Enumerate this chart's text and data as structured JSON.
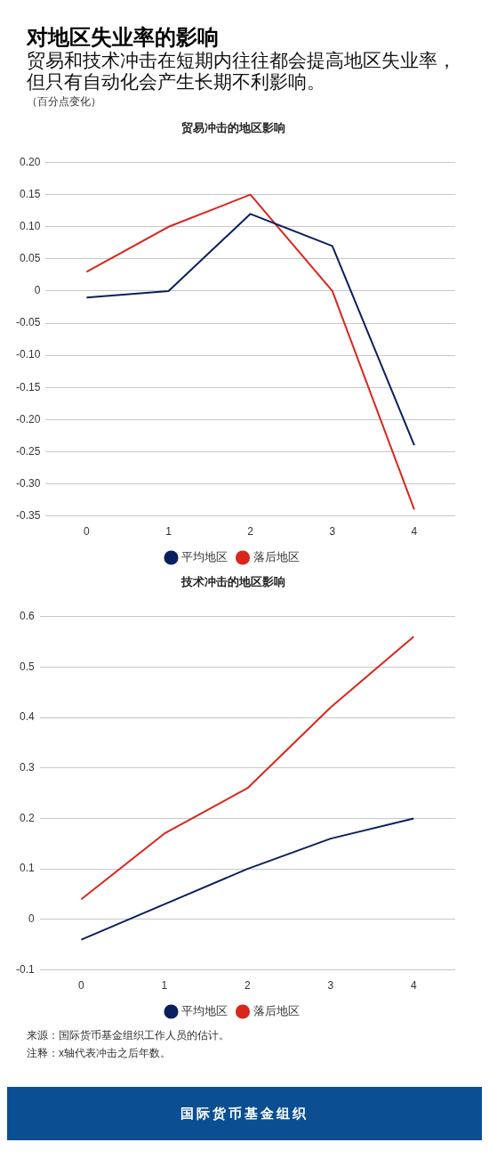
{
  "chart_data": [
    {
      "type": "other",
      "title": "对地区失业率的影响",
      "subtitle": "贸易和技术冲击在短期内往往都会提高地区失业率，但只有自动化会产生长期不利影响。",
      "annotations": [
        "（百分点变化）"
      ]
    },
    {
      "type": "line",
      "title": "贸易冲击的地区影响",
      "categories": [
        "0",
        "1",
        "2",
        "3",
        "4"
      ],
      "series": [
        {
          "name": "平均地区",
          "color": "#0b1f5e",
          "values": [
            -0.01,
            0.0,
            0.12,
            0.07,
            -0.24
          ]
        },
        {
          "name": "落后地区",
          "color": "#d9261c",
          "values": [
            0.03,
            0.1,
            0.15,
            0.0,
            -0.34
          ]
        }
      ],
      "ylim": [
        -0.35,
        0.2
      ],
      "yticks": [
        {
          "value": 0.2,
          "label": "0.20"
        },
        {
          "value": 0.15,
          "label": "0.15"
        },
        {
          "value": 0.1,
          "label": "0.10"
        },
        {
          "value": 0.05,
          "label": "0.05"
        },
        0,
        {
          "value": -0.05,
          "label": "-0.05"
        },
        {
          "value": -0.1,
          "label": "-0.10"
        },
        {
          "value": -0.15,
          "label": "-0.15"
        },
        {
          "value": -0.2,
          "label": "-0.20"
        },
        {
          "value": -0.25,
          "label": "-0.25"
        },
        {
          "value": -0.3,
          "label": "-0.30"
        },
        {
          "value": -0.35,
          "label": "-0.35"
        }
      ],
      "grid": "y",
      "legend": "bottom",
      "marker": "none",
      "line_style": "solid"
    },
    {
      "type": "line",
      "title": "技术冲击的地区影响",
      "categories": [
        "0",
        "1",
        "2",
        "3",
        "4"
      ],
      "series": [
        {
          "name": "平均地区",
          "color": "#0b1f5e",
          "values": [
            -0.04,
            0.03,
            0.1,
            0.16,
            0.2
          ]
        },
        {
          "name": "落后地区",
          "color": "#d9261c",
          "values": [
            0.04,
            0.17,
            0.26,
            0.42,
            0.56
          ]
        }
      ],
      "ylim": [
        -0.1,
        0.6
      ],
      "yticks": [
        -0.1,
        0,
        0.1,
        0.2,
        0.3,
        0.4,
        0.5,
        0.6
      ],
      "grid": "y",
      "legend": "bottom",
      "marker": "none",
      "line_style": "solid",
      "annotations": [
        "来源：国际货币基金组织工作人员的估计。",
        "注释：x轴代表冲击之后年数。",
        "国际货币基金组织"
      ]
    }
  ]
}
